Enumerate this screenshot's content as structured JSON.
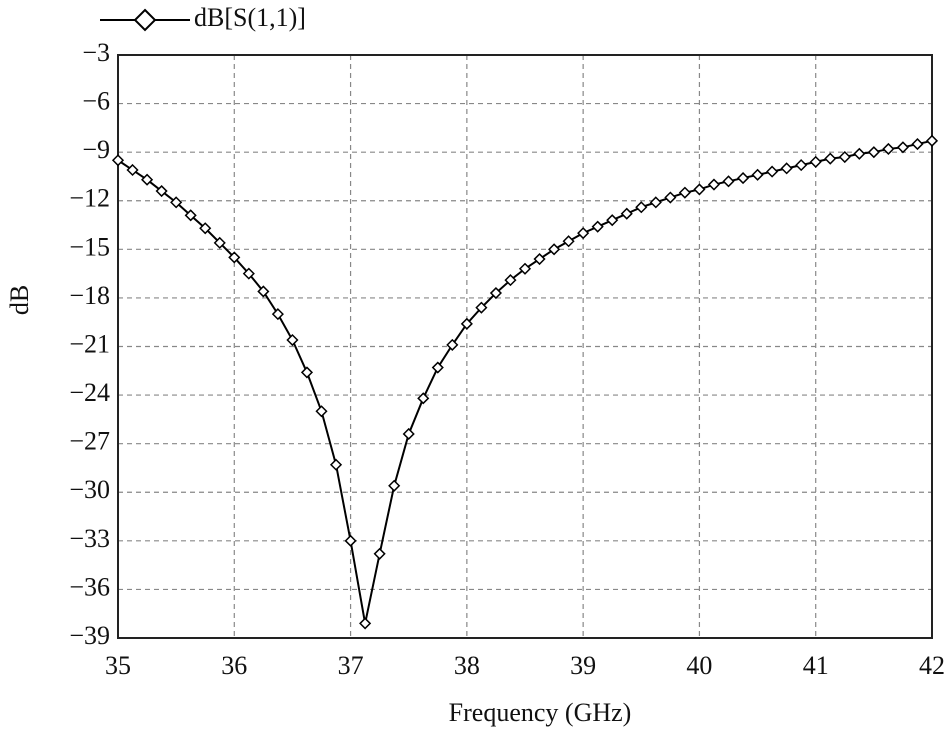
{
  "chart_data": {
    "type": "line",
    "y_label": "dB",
    "x_label": "Frequency (GHz)",
    "x": [
      35.0,
      35.125,
      35.25,
      35.375,
      35.5,
      35.625,
      35.75,
      35.875,
      36.0,
      36.125,
      36.25,
      36.375,
      36.5,
      36.625,
      36.75,
      36.875,
      37.0,
      37.125,
      37.25,
      37.375,
      37.5,
      37.625,
      37.75,
      37.875,
      38.0,
      38.125,
      38.25,
      38.375,
      38.5,
      38.625,
      38.75,
      38.875,
      39.0,
      39.125,
      39.25,
      39.375,
      39.5,
      39.625,
      39.75,
      39.875,
      40.0,
      40.125,
      40.25,
      40.375,
      40.5,
      40.625,
      40.75,
      40.875,
      41.0,
      41.125,
      41.25,
      41.375,
      41.5,
      41.625,
      41.75,
      41.875,
      42.0
    ],
    "series": [
      {
        "name": "dB[S(1,1)]",
        "color": "#000000",
        "values": [
          -9.5,
          -10.1,
          -10.7,
          -11.4,
          -12.1,
          -12.9,
          -13.7,
          -14.6,
          -15.5,
          -16.5,
          -17.6,
          -19.0,
          -20.6,
          -22.6,
          -25.0,
          -28.3,
          -33.0,
          -38.1,
          -33.8,
          -29.6,
          -26.4,
          -24.2,
          -22.3,
          -20.9,
          -19.6,
          -18.6,
          -17.7,
          -16.9,
          -16.2,
          -15.6,
          -15.0,
          -14.5,
          -14.0,
          -13.6,
          -13.2,
          -12.8,
          -12.4,
          -12.1,
          -11.8,
          -11.5,
          -11.3,
          -11.0,
          -10.8,
          -10.6,
          -10.4,
          -10.2,
          -10.0,
          -9.8,
          -9.6,
          -9.4,
          -9.3,
          -9.1,
          -9.0,
          -8.8,
          -8.7,
          -8.5,
          -8.3
        ]
      }
    ],
    "xlim": [
      35,
      42
    ],
    "xticks": [
      35,
      36,
      37,
      38,
      39,
      40,
      41,
      42
    ],
    "ylim": [
      -39,
      -3
    ],
    "yticks": [
      {
        "value": -3,
        "label": "−3"
      },
      {
        "value": -6,
        "label": "−6"
      },
      {
        "value": -9,
        "label": "−9"
      },
      {
        "value": -12,
        "label": "−12"
      },
      {
        "value": -15,
        "label": "−15"
      },
      {
        "value": -18,
        "label": "−18"
      },
      {
        "value": -21,
        "label": "−21"
      },
      {
        "value": -24,
        "label": "−24"
      },
      {
        "value": -27,
        "label": "−27"
      },
      {
        "value": -30,
        "label": "−30"
      },
      {
        "value": -33,
        "label": "−33"
      },
      {
        "value": -36,
        "label": "−36"
      },
      {
        "value": -39,
        "label": "−39"
      }
    ],
    "grid": true
  }
}
